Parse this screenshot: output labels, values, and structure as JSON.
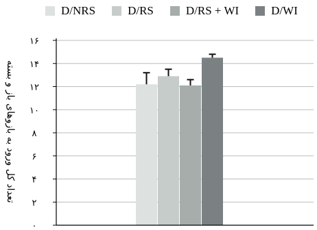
{
  "chart_data": {
    "type": "bar",
    "title": "",
    "xlabel": "",
    "ylabel": "تعداد کل ورود به بازوهای باز و بسته",
    "ylim": [
      0,
      16
    ],
    "yticks": [
      0,
      2,
      4,
      6,
      8,
      10,
      12,
      14,
      16
    ],
    "ytick_labels": [
      "۰",
      "۲",
      "۴",
      "۶",
      "۸",
      "۱۰",
      "۱۲",
      "۱۴",
      "۱۶"
    ],
    "grid": true,
    "legend_position": "top",
    "categories": [
      "D/NRS",
      "D/RS",
      "D/RS + WI",
      "D/WI"
    ],
    "series": [
      {
        "name": "D/NRS",
        "value": 12.2,
        "error": 1.0,
        "color": "#dde2e1"
      },
      {
        "name": "D/RS",
        "value": 12.9,
        "error": 0.6,
        "color": "#c6ccca"
      },
      {
        "name": "D/RS + WI",
        "value": 12.1,
        "error": 0.5,
        "color": "#a6adab"
      },
      {
        "name": "D/WI",
        "value": 14.5,
        "error": 0.3,
        "color": "#7b8182"
      }
    ]
  }
}
